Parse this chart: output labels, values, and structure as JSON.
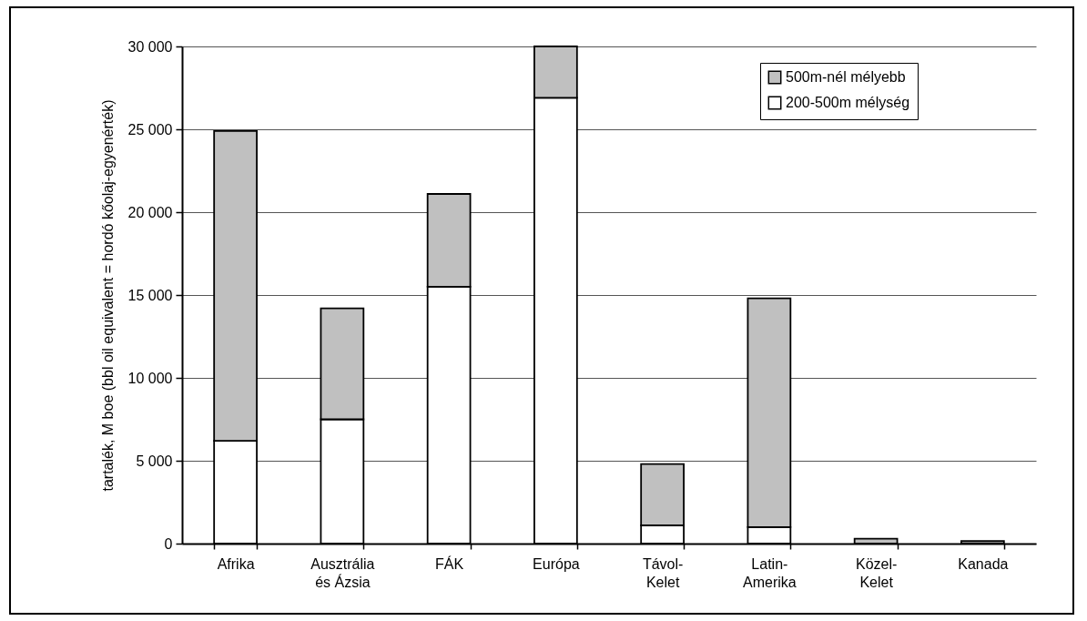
{
  "chart_data": {
    "type": "bar",
    "stacked": true,
    "ylabel": "tartalék, M boe (bbl oil equivalent = hordó kőolaj-egyenérték)",
    "categories": [
      "Afrika",
      "Ausztrália és Ázsia",
      "FÁK",
      "Európa",
      "Távol-Kelet",
      "Latin-Amerika",
      "Közel-Kelet",
      "Kanada"
    ],
    "series": [
      {
        "name": "200-500m mélység",
        "color": "#ffffff",
        "values": [
          6200,
          7500,
          15500,
          26900,
          1100,
          1000,
          null,
          null
        ]
      },
      {
        "name": "500m-nél mélyebb",
        "color": "#c0c0c0",
        "values": [
          18700,
          6700,
          5600,
          3100,
          3700,
          13800,
          300,
          150
        ]
      }
    ],
    "ylim": [
      0,
      30000
    ],
    "yticks": [
      0,
      {
        "value": 5000,
        "label": "5 000"
      },
      {
        "value": 10000,
        "label": "10 000"
      },
      {
        "value": 15000,
        "label": "15 000"
      },
      {
        "value": 20000,
        "label": "20 000"
      },
      {
        "value": 25000,
        "label": "25 000"
      },
      {
        "value": 30000,
        "label": "30 000"
      }
    ],
    "grid": "y",
    "legend": "top right"
  }
}
